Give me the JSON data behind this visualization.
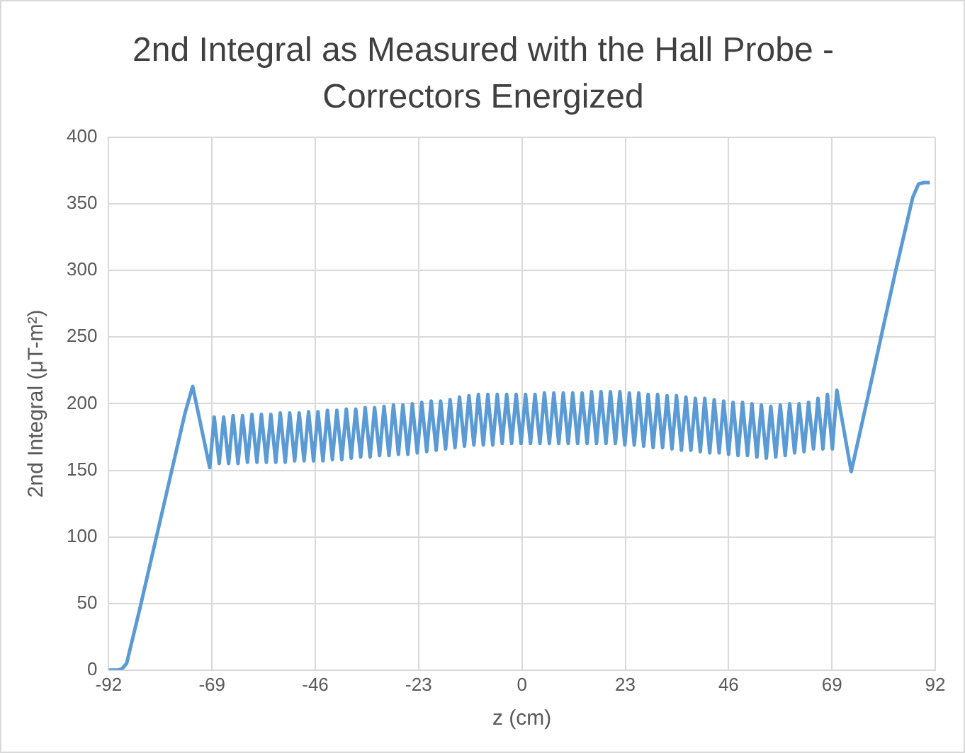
{
  "chart_data": {
    "type": "line",
    "title": "2nd Integral as Measured with the Hall Probe - Correctors Energized",
    "xlabel": "z (cm)",
    "ylabel": "2nd Integral (μT-m²)",
    "xlim": [
      -92,
      92
    ],
    "xticks": [
      -92,
      -69,
      -46,
      -23,
      0,
      23,
      46,
      69,
      92
    ],
    "ylim": [
      0,
      400
    ],
    "yticks": [
      0,
      50,
      100,
      150,
      200,
      250,
      300,
      350,
      400
    ],
    "grid": true,
    "legend": false,
    "marker": "none",
    "line_style": "solid",
    "x": [
      -92,
      -90,
      -89,
      -88,
      -85,
      -80,
      -75,
      -73.3,
      -69.5,
      -68.5,
      -67.4,
      -66.4,
      -65.3,
      -64.3,
      -63.2,
      -62.2,
      -61.1,
      -60.1,
      -59.0,
      -58.0,
      -56.9,
      -55.9,
      -54.8,
      -53.8,
      -52.7,
      -51.7,
      -50.6,
      -49.6,
      -48.5,
      -47.5,
      -46.4,
      -45.4,
      -44.3,
      -43.3,
      -42.2,
      -41.2,
      -40.1,
      -39.1,
      -38.0,
      -37.0,
      -35.9,
      -34.9,
      -33.8,
      -32.8,
      -31.7,
      -30.7,
      -29.6,
      -28.6,
      -27.5,
      -26.5,
      -25.4,
      -24.4,
      -23.3,
      -22.3,
      -21.2,
      -20.2,
      -19.1,
      -18.1,
      -17.0,
      -16.0,
      -14.9,
      -13.9,
      -12.8,
      -11.8,
      -10.7,
      -9.7,
      -8.6,
      -7.6,
      -6.5,
      -5.5,
      -4.4,
      -3.4,
      -2.3,
      -1.3,
      -0.2,
      0.8,
      1.9,
      2.9,
      4.0,
      5.0,
      6.1,
      7.1,
      8.2,
      9.2,
      10.3,
      11.3,
      12.4,
      13.4,
      14.5,
      15.5,
      16.6,
      17.6,
      18.7,
      19.7,
      20.8,
      21.8,
      22.9,
      23.9,
      25.0,
      26.0,
      27.1,
      28.1,
      29.2,
      30.2,
      31.3,
      32.3,
      33.4,
      34.4,
      35.5,
      36.5,
      37.6,
      38.6,
      39.7,
      40.7,
      41.8,
      42.8,
      43.9,
      44.9,
      46.0,
      47.0,
      48.1,
      49.1,
      50.2,
      51.2,
      52.3,
      53.3,
      54.4,
      55.4,
      56.5,
      57.5,
      58.6,
      59.6,
      60.7,
      61.7,
      62.8,
      63.8,
      64.9,
      65.9,
      67.0,
      68.0,
      69.1,
      70.1,
      73.3,
      77,
      83,
      87,
      88.3,
      89.5,
      90.8
    ],
    "series": [
      {
        "color": "#5b9bd5",
        "values": [
          0,
          0,
          1,
          5,
          47,
          120,
          193,
          213,
          152,
          190,
          155,
          190,
          155,
          191,
          155,
          191,
          156,
          192,
          156,
          192,
          156,
          192,
          156,
          193,
          156,
          193,
          157,
          193,
          157,
          194,
          157,
          194,
          157,
          195,
          158,
          195,
          158,
          196,
          159,
          196,
          160,
          197,
          160,
          197,
          161,
          198,
          161,
          199,
          162,
          199,
          162,
          200,
          163,
          201,
          164,
          202,
          165,
          202,
          166,
          203,
          167,
          205,
          168,
          206,
          169,
          207,
          169,
          207,
          169,
          207,
          170,
          207,
          170,
          207,
          170,
          207,
          170,
          207,
          170,
          208,
          170,
          208,
          170,
          208,
          170,
          208,
          170,
          208,
          170,
          209,
          170,
          209,
          170,
          209,
          170,
          209,
          169,
          208,
          169,
          208,
          168,
          207,
          167,
          207,
          167,
          206,
          166,
          206,
          165,
          205,
          165,
          204,
          164,
          204,
          163,
          203,
          163,
          202,
          162,
          201,
          161,
          201,
          161,
          200,
          160,
          199,
          159,
          198,
          160,
          199,
          161,
          200,
          163,
          200,
          164,
          201,
          166,
          204,
          166,
          207,
          166,
          210,
          149,
          205,
          297,
          355,
          365,
          366,
          366
        ]
      }
    ]
  }
}
